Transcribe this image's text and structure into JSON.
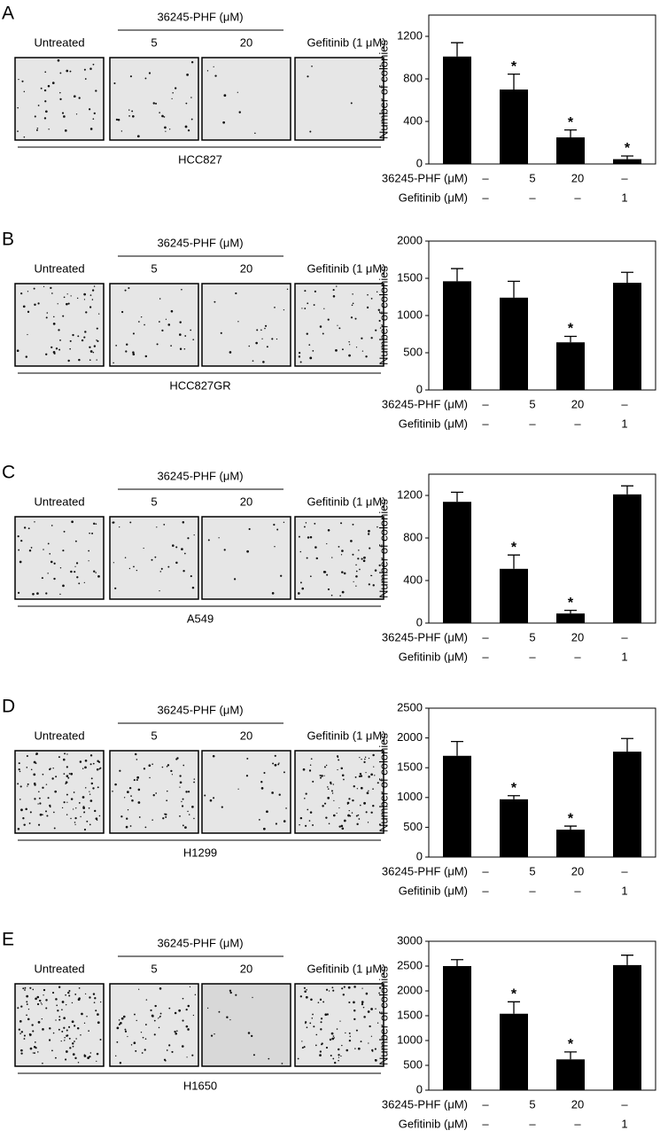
{
  "panels": [
    {
      "letter": "A",
      "treatment": "36245-PHF (μM)",
      "labels": [
        "Untreated",
        "5",
        "20",
        "Gefitinib (1 μM)"
      ],
      "cell_line": "HCC827"
    },
    {
      "letter": "B",
      "treatment": "36245-PHF (μM)",
      "labels": [
        "Untreated",
        "5",
        "20",
        "Gefitinib (1 μM)"
      ],
      "cell_line": "HCC827GR"
    },
    {
      "letter": "C",
      "treatment": "36245-PHF (μM)",
      "labels": [
        "Untreated",
        "5",
        "20",
        "Gefitinib (1 μM)"
      ],
      "cell_line": "A549"
    },
    {
      "letter": "D",
      "treatment": "36245-PHF (μM)",
      "labels": [
        "Untreated",
        "5",
        "20",
        "Gefitinib (1 μM)"
      ],
      "cell_line": "H1299"
    },
    {
      "letter": "E",
      "treatment": "36245-PHF (μM)",
      "labels": [
        "Untreated",
        "5",
        "20",
        "Gefitinib (1 μM)"
      ],
      "cell_line": "H1650"
    }
  ],
  "chart_data": [
    {
      "type": "bar",
      "ylabel": "Number of colonies",
      "color": "#000000",
      "values": [
        1010,
        700,
        250,
        45
      ],
      "errors": [
        130,
        145,
        70,
        30
      ],
      "significance": [
        null,
        "*",
        "*",
        "*"
      ],
      "conditions": [
        {
          "name": "36245-PHF (μM)",
          "values": [
            "–",
            "5",
            "20",
            "–"
          ]
        },
        {
          "name": "Gefitinib (μM)",
          "values": [
            "–",
            "–",
            "–",
            "1"
          ]
        }
      ],
      "ylim": [
        0,
        1400
      ],
      "yticks": [
        0,
        400,
        800,
        1200
      ]
    },
    {
      "type": "bar",
      "ylabel": "Number of colonies",
      "color": "#000000",
      "values": [
        1460,
        1240,
        640,
        1440
      ],
      "errors": [
        170,
        220,
        80,
        140
      ],
      "significance": [
        null,
        null,
        "*",
        null
      ],
      "conditions": [
        {
          "name": "36245-PHF (μM)",
          "values": [
            "–",
            "5",
            "20",
            "–"
          ]
        },
        {
          "name": "Gefitinib (μM)",
          "values": [
            "–",
            "–",
            "–",
            "1"
          ]
        }
      ],
      "ylim": [
        0,
        2000
      ],
      "yticks": [
        0,
        500,
        1000,
        1500,
        2000
      ]
    },
    {
      "type": "bar",
      "ylabel": "Number of colonies",
      "color": "#000000",
      "values": [
        1140,
        510,
        90,
        1210
      ],
      "errors": [
        90,
        130,
        30,
        80
      ],
      "significance": [
        null,
        "*",
        "*",
        null
      ],
      "conditions": [
        {
          "name": "36245-PHF (μM)",
          "values": [
            "–",
            "5",
            "20",
            "–"
          ]
        },
        {
          "name": "Gefitinib (μM)",
          "values": [
            "–",
            "–",
            "–",
            "1"
          ]
        }
      ],
      "ylim": [
        0,
        1400
      ],
      "yticks": [
        0,
        400,
        800,
        1200
      ]
    },
    {
      "type": "bar",
      "ylabel": "Number of colonies",
      "color": "#000000",
      "values": [
        1700,
        970,
        460,
        1770
      ],
      "errors": [
        240,
        60,
        60,
        220
      ],
      "significance": [
        null,
        "*",
        "*",
        null
      ],
      "conditions": [
        {
          "name": "36245-PHF (μM)",
          "values": [
            "–",
            "5",
            "20",
            "–"
          ]
        },
        {
          "name": "Gefitinib (μM)",
          "values": [
            "–",
            "–",
            "–",
            "1"
          ]
        }
      ],
      "ylim": [
        0,
        2500
      ],
      "yticks": [
        0,
        500,
        1000,
        1500,
        2000,
        2500
      ]
    },
    {
      "type": "bar",
      "ylabel": "Number of colonies",
      "color": "#000000",
      "values": [
        2500,
        1540,
        620,
        2520
      ],
      "errors": [
        130,
        240,
        150,
        200
      ],
      "significance": [
        null,
        "*",
        "*",
        null
      ],
      "conditions": [
        {
          "name": "36245-PHF (μM)",
          "values": [
            "–",
            "5",
            "20",
            "–"
          ]
        },
        {
          "name": "Gefitinib (μM)",
          "values": [
            "–",
            "–",
            "–",
            "1"
          ]
        }
      ],
      "ylim": [
        0,
        3000
      ],
      "yticks": [
        0,
        500,
        1000,
        1500,
        2000,
        2500,
        3000
      ]
    }
  ]
}
